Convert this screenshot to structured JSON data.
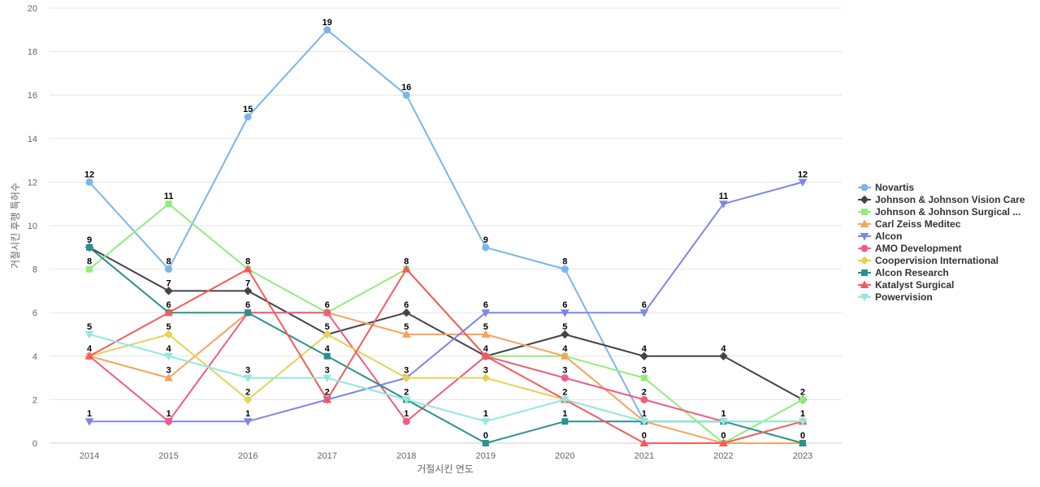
{
  "chart_data": {
    "type": "line",
    "title": "",
    "xlabel": "거절시킨 연도",
    "ylabel": "거절시킨 후행 특허수",
    "ylim": [
      0,
      20
    ],
    "y_ticks": [
      0,
      2,
      4,
      6,
      8,
      10,
      12,
      14,
      16,
      18,
      20
    ],
    "grid": true,
    "legend_position": "right",
    "categories": [
      "2014",
      "2015",
      "2016",
      "2017",
      "2018",
      "2019",
      "2020",
      "2021",
      "2022",
      "2023"
    ],
    "series": [
      {
        "name": "Novartis",
        "color": "#7cb5ec",
        "marker": "circle",
        "values": [
          12,
          8,
          15,
          19,
          16,
          9,
          8,
          1,
          null,
          null
        ]
      },
      {
        "name": "Johnson & Johnson Vision Care",
        "color": "#434348",
        "marker": "diamond",
        "values": [
          9,
          7,
          7,
          5,
          6,
          4,
          5,
          4,
          4,
          2
        ]
      },
      {
        "name": "Johnson & Johnson Surgical ...",
        "color": "#90ed7d",
        "marker": "square",
        "values": [
          8,
          11,
          8,
          6,
          8,
          4,
          4,
          3,
          0,
          2
        ]
      },
      {
        "name": "Carl Zeiss Meditec",
        "color": "#f7a35c",
        "marker": "triangle",
        "values": [
          4,
          3,
          6,
          6,
          5,
          5,
          4,
          1,
          0,
          0
        ]
      },
      {
        "name": "Alcon",
        "color": "#8085e9",
        "marker": "triangle-down",
        "values": [
          1,
          1,
          1,
          2,
          3,
          6,
          6,
          6,
          11,
          12
        ]
      },
      {
        "name": "AMO Development",
        "color": "#f15c80",
        "marker": "circle",
        "values": [
          4,
          1,
          6,
          6,
          1,
          4,
          3,
          2,
          1,
          null
        ]
      },
      {
        "name": "Coopervision International",
        "color": "#e4d354",
        "marker": "diamond",
        "values": [
          4,
          5,
          2,
          5,
          3,
          3,
          2,
          1,
          1,
          1
        ]
      },
      {
        "name": "Alcon Research",
        "color": "#2b908f",
        "marker": "square",
        "values": [
          9,
          6,
          6,
          4,
          2,
          0,
          1,
          1,
          1,
          0
        ]
      },
      {
        "name": "Katalyst Surgical",
        "color": "#f45b5b",
        "marker": "triangle",
        "values": [
          4,
          6,
          8,
          2,
          8,
          4,
          2,
          0,
          0,
          1
        ]
      },
      {
        "name": "Powervision",
        "color": "#91e8e1",
        "marker": "triangle-down",
        "values": [
          5,
          4,
          3,
          3,
          2,
          1,
          2,
          1,
          1,
          1
        ]
      }
    ],
    "data_labels": [
      {
        "x": "2014",
        "y": 12,
        "text": "12"
      },
      {
        "x": "2014",
        "y": 9,
        "text": "9"
      },
      {
        "x": "2014",
        "y": 8,
        "text": "8"
      },
      {
        "x": "2014",
        "y": 5,
        "text": "5"
      },
      {
        "x": "2014",
        "y": 4,
        "text": "4"
      },
      {
        "x": "2014",
        "y": 1,
        "text": "1"
      },
      {
        "x": "2015",
        "y": 11,
        "text": "11"
      },
      {
        "x": "2015",
        "y": 8,
        "text": "8"
      },
      {
        "x": "2015",
        "y": 7,
        "text": "7"
      },
      {
        "x": "2015",
        "y": 6,
        "text": "6"
      },
      {
        "x": "2015",
        "y": 5,
        "text": "5"
      },
      {
        "x": "2015",
        "y": 4,
        "text": "4"
      },
      {
        "x": "2015",
        "y": 3,
        "text": "3"
      },
      {
        "x": "2015",
        "y": 1,
        "text": "1"
      },
      {
        "x": "2016",
        "y": 15,
        "text": "15"
      },
      {
        "x": "2016",
        "y": 8,
        "text": "8"
      },
      {
        "x": "2016",
        "y": 7,
        "text": "7"
      },
      {
        "x": "2016",
        "y": 6,
        "text": "6"
      },
      {
        "x": "2016",
        "y": 3,
        "text": "3"
      },
      {
        "x": "2016",
        "y": 2,
        "text": "2"
      },
      {
        "x": "2016",
        "y": 1,
        "text": "1"
      },
      {
        "x": "2017",
        "y": 19,
        "text": "19"
      },
      {
        "x": "2017",
        "y": 6,
        "text": "6"
      },
      {
        "x": "2017",
        "y": 5,
        "text": "5"
      },
      {
        "x": "2017",
        "y": 4,
        "text": "4"
      },
      {
        "x": "2017",
        "y": 3,
        "text": "3"
      },
      {
        "x": "2017",
        "y": 2,
        "text": "2"
      },
      {
        "x": "2018",
        "y": 16,
        "text": "16"
      },
      {
        "x": "2018",
        "y": 8,
        "text": "8"
      },
      {
        "x": "2018",
        "y": 6,
        "text": "6"
      },
      {
        "x": "2018",
        "y": 5,
        "text": "5"
      },
      {
        "x": "2018",
        "y": 3,
        "text": "3"
      },
      {
        "x": "2018",
        "y": 2,
        "text": "2"
      },
      {
        "x": "2018",
        "y": 1,
        "text": "1"
      },
      {
        "x": "2019",
        "y": 9,
        "text": "9"
      },
      {
        "x": "2019",
        "y": 6,
        "text": "6"
      },
      {
        "x": "2019",
        "y": 5,
        "text": "5"
      },
      {
        "x": "2019",
        "y": 4,
        "text": "4"
      },
      {
        "x": "2019",
        "y": 3,
        "text": "3"
      },
      {
        "x": "2019",
        "y": 1,
        "text": "1"
      },
      {
        "x": "2019",
        "y": 0,
        "text": "0"
      },
      {
        "x": "2020",
        "y": 8,
        "text": "8"
      },
      {
        "x": "2020",
        "y": 6,
        "text": "6"
      },
      {
        "x": "2020",
        "y": 5,
        "text": "5"
      },
      {
        "x": "2020",
        "y": 4,
        "text": "4"
      },
      {
        "x": "2020",
        "y": 3,
        "text": "3"
      },
      {
        "x": "2020",
        "y": 2,
        "text": "2"
      },
      {
        "x": "2020",
        "y": 1,
        "text": "1"
      },
      {
        "x": "2021",
        "y": 6,
        "text": "6"
      },
      {
        "x": "2021",
        "y": 4,
        "text": "4"
      },
      {
        "x": "2021",
        "y": 3,
        "text": "3"
      },
      {
        "x": "2021",
        "y": 2,
        "text": "2"
      },
      {
        "x": "2021",
        "y": 1,
        "text": "1"
      },
      {
        "x": "2021",
        "y": 0,
        "text": "0"
      },
      {
        "x": "2022",
        "y": 11,
        "text": "11"
      },
      {
        "x": "2022",
        "y": 4,
        "text": "4"
      },
      {
        "x": "2022",
        "y": 1,
        "text": "1"
      },
      {
        "x": "2022",
        "y": 0,
        "text": "0"
      },
      {
        "x": "2023",
        "y": 12,
        "text": "12"
      },
      {
        "x": "2023",
        "y": 2,
        "text": "2"
      },
      {
        "x": "2023",
        "y": 1,
        "text": "1"
      },
      {
        "x": "2023",
        "y": 0,
        "text": "0"
      }
    ]
  }
}
